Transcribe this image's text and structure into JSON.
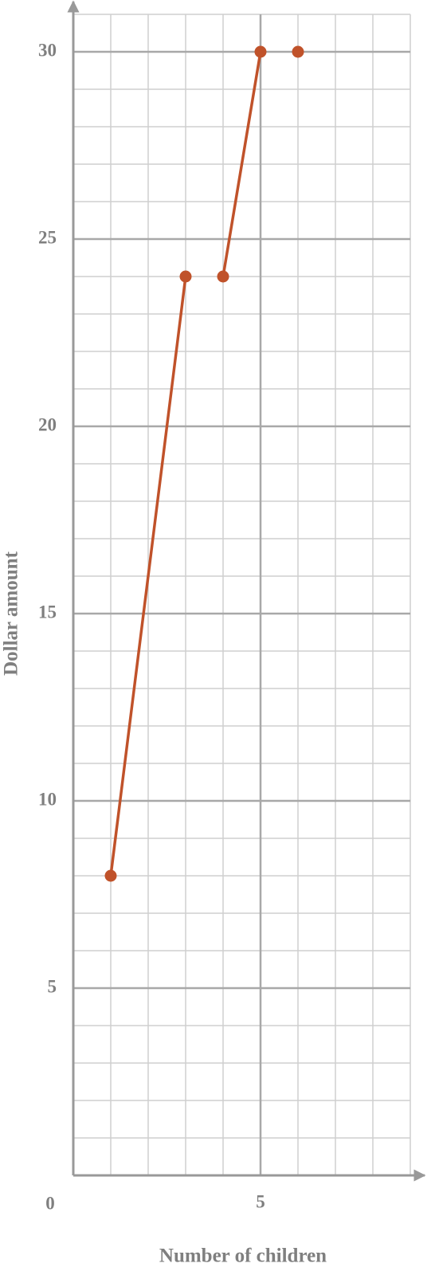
{
  "chart_data": {
    "type": "line",
    "x_label": "Number of children",
    "y_label": "Dollar amount",
    "xlim": [
      0,
      9
    ],
    "ylim": [
      0,
      31
    ],
    "xticks": [
      0,
      5
    ],
    "yticks": [
      5,
      10,
      15,
      20,
      25,
      30
    ],
    "minor_step": 1,
    "grid": true,
    "markers": true,
    "series": [
      {
        "color": "#c0522a",
        "x": [
          1,
          3
        ],
        "values": [
          8,
          24
        ]
      },
      {
        "color": "#c0522a",
        "x": [
          4,
          5
        ],
        "values": [
          24,
          30
        ]
      },
      {
        "color": "#c0522a",
        "x": [
          6
        ],
        "values": [
          30
        ]
      }
    ]
  }
}
